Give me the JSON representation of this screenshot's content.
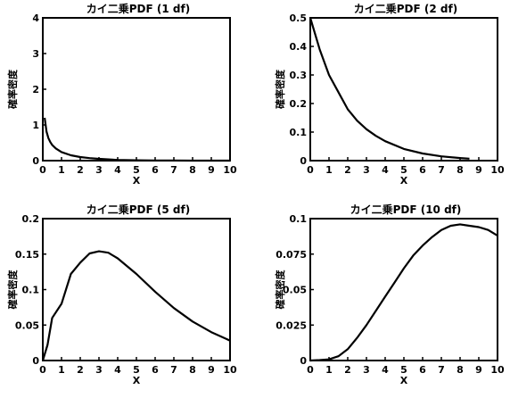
{
  "chart_data": [
    {
      "type": "line",
      "title": "カイ二乗PDF (1 df)",
      "xlabel": "X",
      "ylabel": "確率密度",
      "xlim": [
        0,
        10
      ],
      "ylim": [
        0,
        4
      ],
      "xticks": [
        "0",
        "1",
        "2",
        "3",
        "4",
        "5",
        "6",
        "7",
        "8",
        "9",
        "10"
      ],
      "yticks": [
        "0",
        "1",
        "2",
        "3",
        "4"
      ],
      "grid": false,
      "series": [
        {
          "x": [
            0.1,
            0.2,
            0.3,
            0.4,
            0.5,
            0.7,
            1,
            1.5,
            2,
            2.5,
            3,
            4,
            5,
            6,
            7,
            8,
            9,
            10
          ],
          "values": [
            1.2,
            0.81,
            0.63,
            0.52,
            0.44,
            0.34,
            0.24,
            0.15,
            0.1,
            0.07,
            0.05,
            0.02,
            0.01,
            0.005,
            0.003,
            0.001,
            0.001,
            0.0
          ]
        }
      ]
    },
    {
      "type": "line",
      "title": "カイ二乗PDF (2 df)",
      "xlabel": "X",
      "ylabel": "確率密度",
      "xlim": [
        0,
        10
      ],
      "ylim": [
        0,
        0.5
      ],
      "xticks": [
        "0",
        "1",
        "2",
        "3",
        "4",
        "5",
        "6",
        "7",
        "8",
        "9",
        "10"
      ],
      "yticks": [
        "0",
        "0.1",
        "0.2",
        "0.3",
        "0.4",
        "0.5"
      ],
      "grid": false,
      "series": [
        {
          "x": [
            0,
            0.5,
            1,
            1.5,
            2,
            2.5,
            3,
            3.5,
            4,
            5,
            6,
            7,
            8,
            8.5
          ],
          "values": [
            0.5,
            0.39,
            0.3,
            0.24,
            0.18,
            0.14,
            0.11,
            0.087,
            0.068,
            0.041,
            0.025,
            0.015,
            0.009,
            0.007
          ]
        }
      ]
    },
    {
      "type": "line",
      "title": "カイ二乗PDF (5 df)",
      "xlabel": "X",
      "ylabel": "確率密度",
      "xlim": [
        0,
        10
      ],
      "ylim": [
        0,
        0.2
      ],
      "xticks": [
        "0",
        "1",
        "2",
        "3",
        "4",
        "5",
        "6",
        "7",
        "8",
        "9",
        "10"
      ],
      "yticks": [
        "0",
        "0.05",
        "0.1",
        "0.15",
        "0.2"
      ],
      "grid": false,
      "series": [
        {
          "x": [
            0,
            0.25,
            0.5,
            1,
            1.5,
            2,
            2.5,
            3,
            3.5,
            4,
            5,
            6,
            7,
            8,
            9,
            10
          ],
          "values": [
            0,
            0.022,
            0.06,
            0.08,
            0.122,
            0.138,
            0.151,
            0.154,
            0.152,
            0.144,
            0.122,
            0.097,
            0.074,
            0.055,
            0.04,
            0.028
          ]
        }
      ]
    },
    {
      "type": "line",
      "title": "カイ二乗PDF (10 df)",
      "xlabel": "X",
      "ylabel": "確率密度",
      "xlim": [
        0,
        10
      ],
      "ylim": [
        0,
        0.1
      ],
      "xticks": [
        "0",
        "1",
        "2",
        "3",
        "4",
        "5",
        "6",
        "7",
        "8",
        "9",
        "10"
      ],
      "yticks": [
        "0",
        "0.025",
        "0.05",
        "0.075",
        "0.1"
      ],
      "grid": false,
      "series": [
        {
          "x": [
            0,
            0.5,
            1,
            1.5,
            2,
            2.5,
            3,
            3.5,
            4,
            4.5,
            5,
            5.5,
            6,
            6.5,
            7,
            7.5,
            8,
            8.5,
            9,
            9.5,
            10
          ],
          "values": [
            0,
            0.0003,
            0.0008,
            0.003,
            0.008,
            0.016,
            0.025,
            0.035,
            0.045,
            0.055,
            0.065,
            0.074,
            0.081,
            0.087,
            0.092,
            0.095,
            0.096,
            0.095,
            0.094,
            0.092,
            0.088
          ]
        }
      ]
    }
  ]
}
